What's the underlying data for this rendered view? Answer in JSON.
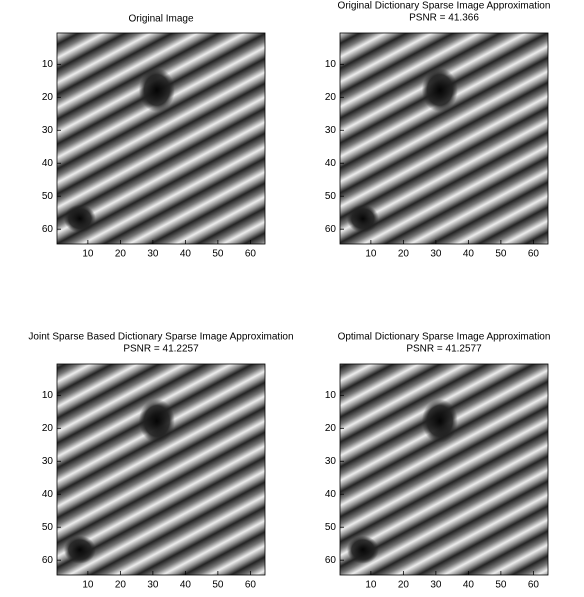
{
  "chart_data": [
    {
      "type": "image",
      "title": "Original Image",
      "xlim": [
        0.5,
        64.5
      ],
      "ylim": [
        64.5,
        0.5
      ],
      "xticks": [
        10,
        20,
        30,
        40,
        50,
        60
      ],
      "yticks": [
        10,
        20,
        30,
        40,
        50,
        60
      ]
    },
    {
      "type": "image",
      "title": "Original Dictionary Sparse Image Approximation",
      "subtitle": "PSNR = 41.366",
      "xlim": [
        0.5,
        64.5
      ],
      "ylim": [
        64.5,
        0.5
      ],
      "xticks": [
        10,
        20,
        30,
        40,
        50,
        60
      ],
      "yticks": [
        10,
        20,
        30,
        40,
        50,
        60
      ]
    },
    {
      "type": "image",
      "title": "Joint Sparse Based Dictionary Sparse Image Approximation",
      "subtitle": "PSNR = 41.2257",
      "xlim": [
        0.5,
        64.5
      ],
      "ylim": [
        64.5,
        0.5
      ],
      "xticks": [
        10,
        20,
        30,
        40,
        50,
        60
      ],
      "yticks": [
        10,
        20,
        30,
        40,
        50,
        60
      ]
    },
    {
      "type": "image",
      "title": "Optimal Dictionary Sparse Image Approximation",
      "subtitle": "PSNR = 41.2577",
      "xlim": [
        0.5,
        64.5
      ],
      "ylim": [
        64.5,
        0.5
      ],
      "xticks": [
        10,
        20,
        30,
        40,
        50,
        60
      ],
      "yticks": [
        10,
        20,
        30,
        40,
        50,
        60
      ]
    }
  ]
}
